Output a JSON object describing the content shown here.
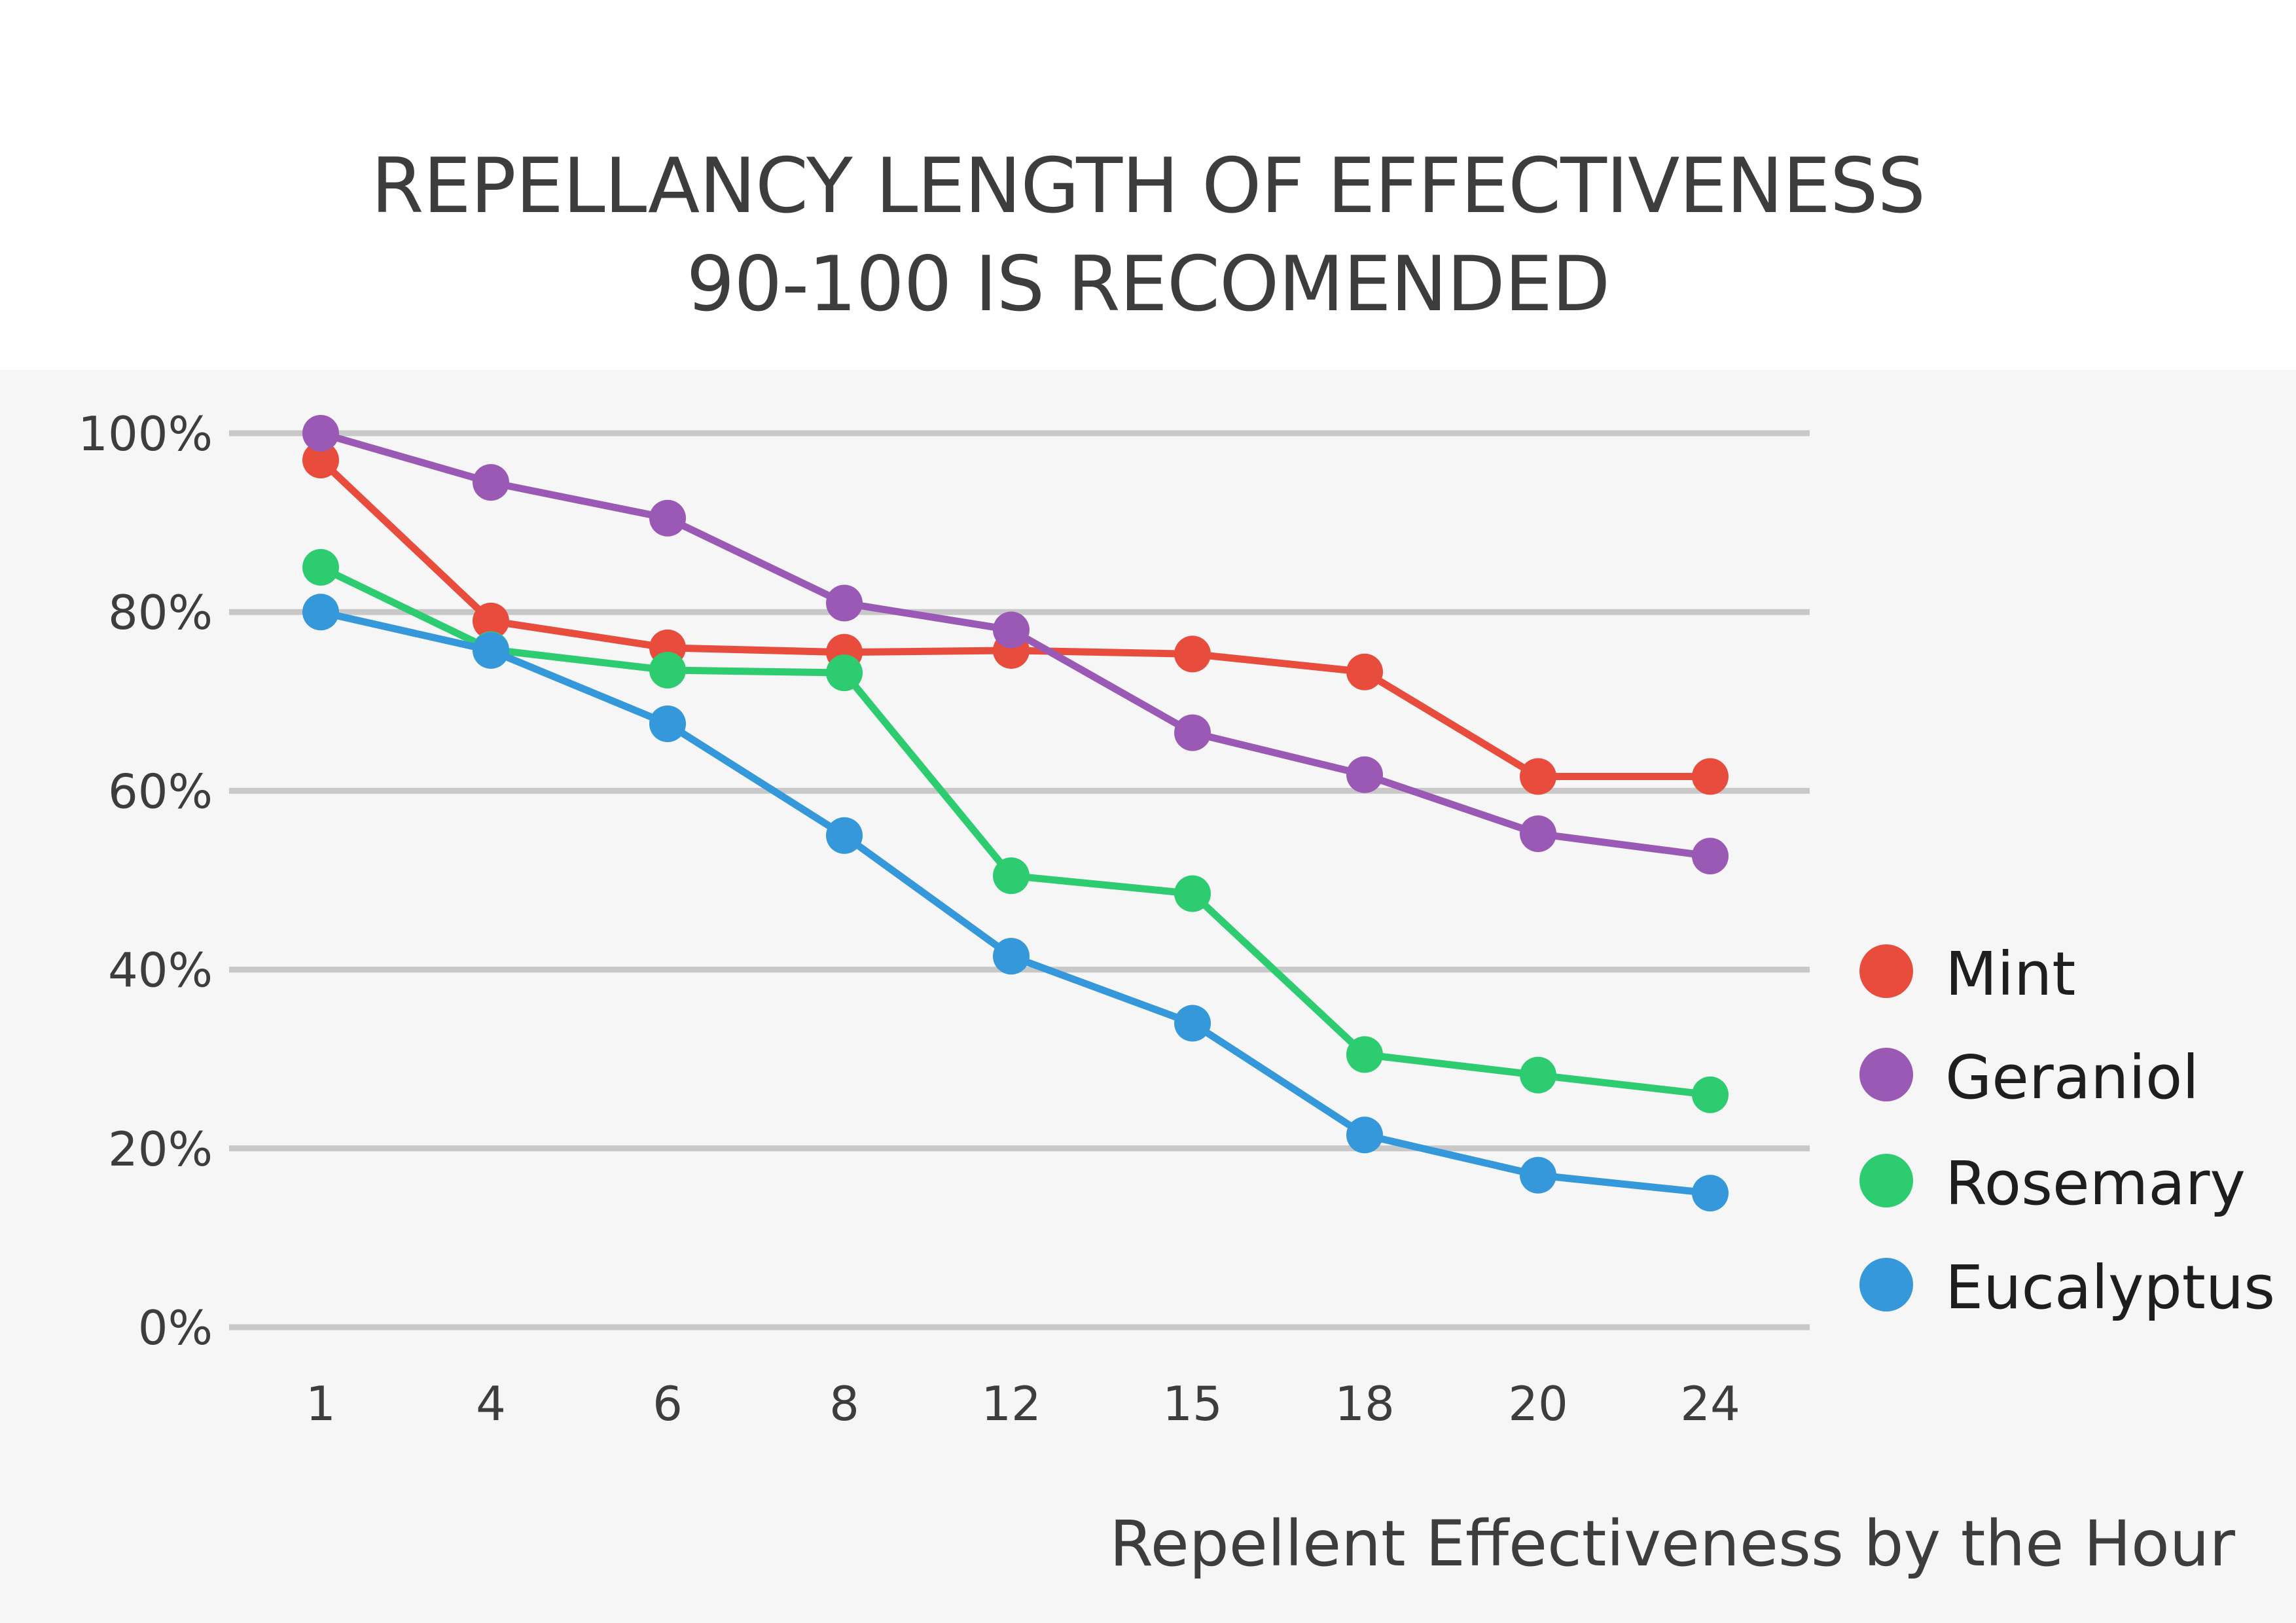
{
  "chart_data": {
    "type": "line",
    "title": "REPELLANCY LENGTH OF EFFECTIVENESS",
    "subtitle": "90-100 IS RECOMENDED",
    "xlabel": "Repellent Effectiveness by the Hour",
    "ylabel": "",
    "categories": [
      "1",
      "4",
      "6",
      "8",
      "12",
      "15",
      "18",
      "20",
      "24"
    ],
    "ylim": [
      0,
      100
    ],
    "yticks": [
      0,
      20,
      40,
      60,
      80,
      100
    ],
    "ytick_labels": [
      "0%",
      "20%",
      "40%",
      "60%",
      "80%",
      "100%"
    ],
    "grid": true,
    "legend_position": "right",
    "series": [
      {
        "name": "Mint",
        "color": "#e84c3d",
        "values": [
          97,
          79,
          76,
          75.5,
          75.7,
          75.3,
          73.3,
          61.6,
          61.6
        ]
      },
      {
        "name": "Geraniol",
        "color": "#9b59b6",
        "values": [
          100,
          94.5,
          90.5,
          81,
          78,
          66.5,
          61.8,
          55.2,
          52.7
        ]
      },
      {
        "name": "Rosemary",
        "color": "#2ecc71",
        "values": [
          85,
          75.8,
          73.5,
          73.2,
          50.5,
          48.5,
          30.5,
          28.2,
          26
        ]
      },
      {
        "name": "Eucalyptus",
        "color": "#3498db",
        "values": [
          80,
          75.7,
          67.5,
          55,
          41.5,
          34,
          21.5,
          17,
          15
        ]
      }
    ]
  }
}
